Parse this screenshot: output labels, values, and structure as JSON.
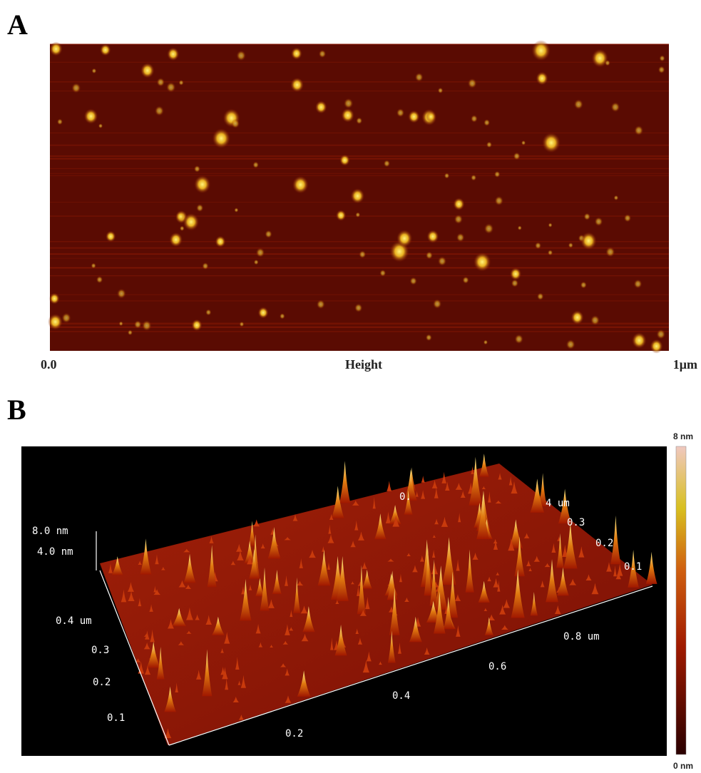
{
  "panels": [
    {
      "label": "A",
      "x_start": "0.0",
      "x_label": "Height",
      "x_end": "1μm"
    },
    {
      "label": "B",
      "z_ticks": [
        "8.0 nm",
        "4.0 nm"
      ],
      "y_ticks": [
        "0.4 um",
        "0.3",
        "0.2",
        "0.1"
      ],
      "x_ticks": [
        "0.2",
        "0.4",
        "0.6",
        "0.8 um"
      ],
      "back_ticks": [
        "0.",
        "4 um",
        "0.3",
        "0.2",
        "0.1"
      ],
      "colorbar": {
        "max": "8 nm",
        "min": "0 nm"
      }
    }
  ]
}
